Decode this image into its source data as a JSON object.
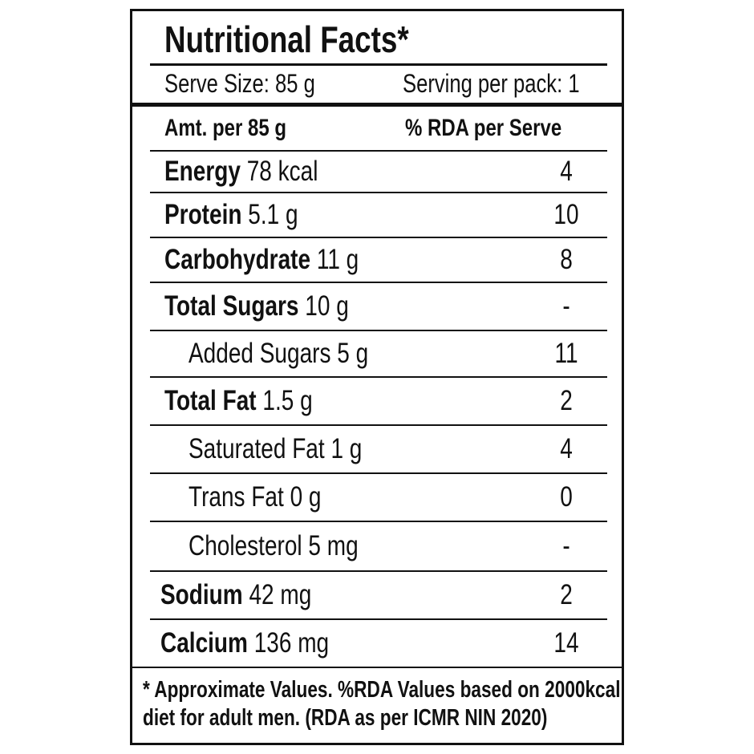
{
  "header": {
    "title": "Nutritional Facts*",
    "serve_size": "Serve Size: 85 g",
    "servings": "Serving per pack: 1"
  },
  "table": {
    "columns": [
      "Amt. per 85 g",
      "% RDA per Serve"
    ],
    "rows": [
      {
        "name": "Energy",
        "amount": "78 kcal",
        "rda": 4
      },
      {
        "name": "Protein",
        "amount": "5.1 g",
        "rda": 10
      },
      {
        "name": "Carbohydrate",
        "amount": "11 g",
        "rda": 8
      },
      {
        "name": "Total Sugars",
        "amount": "10 g",
        "rda": "-"
      },
      {
        "name": "Added Sugars",
        "amount": "5 g",
        "rda": 11
      },
      {
        "name": "Total Fat",
        "amount": "1.5 g",
        "rda": 2
      },
      {
        "name": "Saturated Fat",
        "amount": "1 g",
        "rda": 4
      },
      {
        "name": "Trans Fat",
        "amount": "0 g",
        "rda": 0
      },
      {
        "name": "Cholesterol",
        "amount": "5 mg",
        "rda": "-"
      },
      {
        "name": "Sodium",
        "amount": "42 mg",
        "rda": 2
      },
      {
        "name": "Calcium",
        "amount": "136 mg",
        "rda": 14
      }
    ]
  },
  "footer": {
    "note_line1": "* Approximate Values. %RDA Values based on 2000kcal",
    "note_line2": "diet for adult men. (RDA as per ICMR NIN 2020)"
  }
}
